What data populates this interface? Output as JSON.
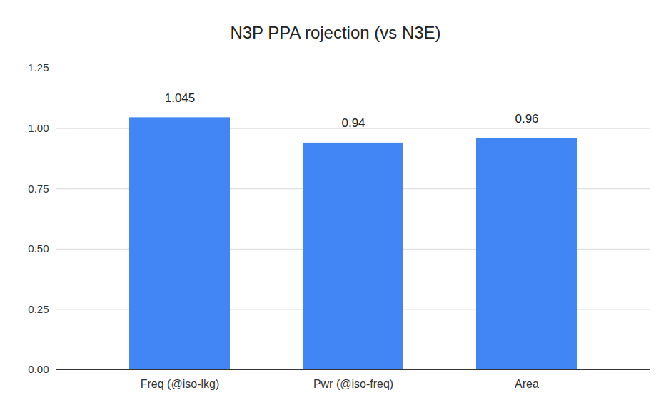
{
  "chart_data": {
    "type": "bar",
    "title": "N3P PPA rojection (vs N3E)",
    "categories": [
      "Freq (@iso-lkg)",
      "Pwr (@iso-freq)",
      "Area"
    ],
    "values": [
      1.045,
      0.94,
      0.96
    ],
    "color": "#4285f4",
    "ylim": [
      0,
      1.25
    ],
    "yticks": [
      {
        "value": 0,
        "label": "0.00"
      },
      {
        "value": 0.25,
        "label": "0.25"
      },
      {
        "value": 0.5,
        "label": "0.50"
      },
      {
        "value": 0.75,
        "label": "0.75"
      },
      {
        "value": 1,
        "label": "1.00"
      },
      {
        "value": 1.25,
        "label": "1.25"
      }
    ],
    "grid": true,
    "data_labels": true
  }
}
